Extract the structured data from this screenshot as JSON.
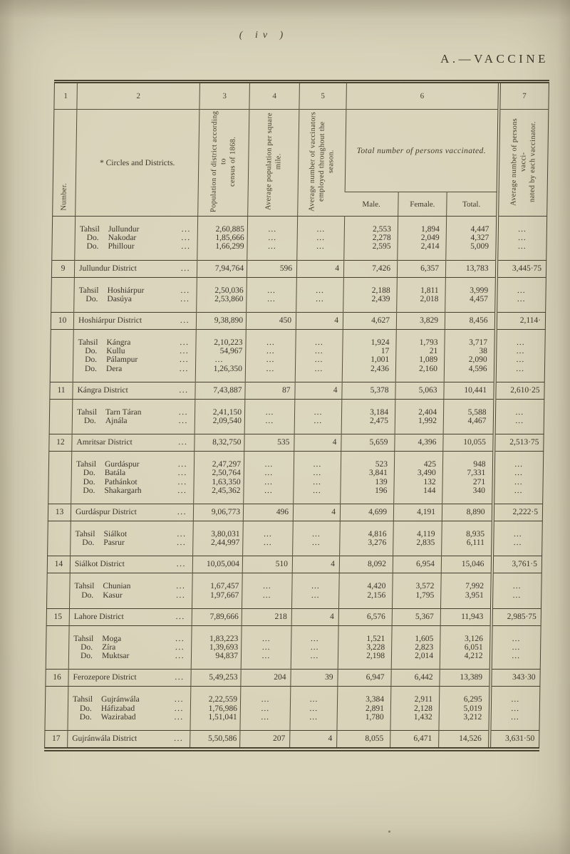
{
  "page": {
    "page_number": "( iv )",
    "section_title": "A.—VACCINE"
  },
  "table": {
    "dots": "...",
    "column_numbers": [
      "1",
      "2",
      "3",
      "4",
      "5",
      "6",
      "7"
    ],
    "headers": {
      "number": "Number.",
      "districts": "* Circles and Districts.",
      "population": "Population of district according to\ncensus of 1868.",
      "density": "Average population per square\nmile.",
      "vaccinators": "Average number of vaccinators\nemployed throughout the season.",
      "vaccinated_caption": "Total number of persons vaccinated.",
      "male": "Male.",
      "female": "Female.",
      "total": "Total.",
      "average": "Average number of persons vacci-\nnated by each vaccinator."
    },
    "groups": [
      {
        "number": "9",
        "tahsils": [
          {
            "prefix": "Tahsil",
            "name": "Jullundur",
            "population": "2,60,885",
            "male": "2,553",
            "female": "1,894",
            "total": "4,447"
          },
          {
            "prefix": "Do.",
            "name": "Nakodar",
            "population": "1,85,666",
            "male": "2,278",
            "female": "2,049",
            "total": "4,327"
          },
          {
            "prefix": "Do.",
            "name": "Phillour",
            "population": "1,66,299",
            "male": "2,595",
            "female": "2,414",
            "total": "5,009"
          }
        ],
        "district": {
          "name": "Jullundur District",
          "population": "7,94,764",
          "density": "596",
          "vaccinators": "4",
          "male": "7,426",
          "female": "6,357",
          "total": "13,783",
          "average": "3,445·75"
        }
      },
      {
        "number": "10",
        "tahsils": [
          {
            "prefix": "Tahsil",
            "name": "Hoshiárpur",
            "population": "2,50,036",
            "male": "2,188",
            "female": "1,811",
            "total": "3,999"
          },
          {
            "prefix": "Do.",
            "name": "Dasúya",
            "population": "2,53,860",
            "male": "2,439",
            "female": "2,018",
            "total": "4,457"
          }
        ],
        "district": {
          "name": "Hoshiárpur District",
          "population": "9,38,890",
          "density": "450",
          "vaccinators": "4",
          "male": "4,627",
          "female": "3,829",
          "total": "8,456",
          "average": "2,114·"
        }
      },
      {
        "number": "11",
        "tahsils": [
          {
            "prefix": "Tahsil",
            "name": "Kángra",
            "population": "2,10,223",
            "male": "1,924",
            "female": "1,793",
            "total": "3,717"
          },
          {
            "prefix": "Do.",
            "name": "Kullu",
            "population": "54,967",
            "male": "17",
            "female": "21",
            "total": "38"
          },
          {
            "prefix": "Do.",
            "name": "Pálampur",
            "population": null,
            "male": "1,001",
            "female": "1,089",
            "total": "2,090"
          },
          {
            "prefix": "Do.",
            "name": "Dera",
            "population": "1,26,350",
            "male": "2,436",
            "female": "2,160",
            "total": "4,596"
          }
        ],
        "district": {
          "name": "Kángra District",
          "population": "7,43,887",
          "density": "87",
          "vaccinators": "4",
          "male": "5,378",
          "female": "5,063",
          "total": "10,441",
          "average": "2,610·25"
        }
      },
      {
        "number": "12",
        "tahsils": [
          {
            "prefix": "Tahsil",
            "name": "Tarn Táran",
            "population": "2,41,150",
            "male": "3,184",
            "female": "2,404",
            "total": "5,588"
          },
          {
            "prefix": "Do.",
            "name": "Ajnála",
            "population": "2,09,540",
            "male": "2,475",
            "female": "1,992",
            "total": "4,467"
          }
        ],
        "district": {
          "name": "Amritsar District",
          "population": "8,32,750",
          "density": "535",
          "vaccinators": "4",
          "male": "5,659",
          "female": "4,396",
          "total": "10,055",
          "average": "2,513·75"
        }
      },
      {
        "number": "13",
        "tahsils": [
          {
            "prefix": "Tahsil",
            "name": "Gurdáspur",
            "population": "2,47,297",
            "male": "523",
            "female": "425",
            "total": "948"
          },
          {
            "prefix": "Do.",
            "name": "Batála",
            "population": "2,50,764",
            "male": "3,841",
            "female": "3,490",
            "total": "7,331"
          },
          {
            "prefix": "Do.",
            "name": "Pathánkot",
            "population": "1,63,350",
            "male": "139",
            "female": "132",
            "total": "271"
          },
          {
            "prefix": "Do.",
            "name": "Shakargarh",
            "population": "2,45,362",
            "male": "196",
            "female": "144",
            "total": "340"
          }
        ],
        "district": {
          "name": "Gurdáspur District",
          "population": "9,06,773",
          "density": "496",
          "vaccinators": "4",
          "male": "4,699",
          "female": "4,191",
          "total": "8,890",
          "average": "2,222·5"
        }
      },
      {
        "number": "14",
        "tahsils": [
          {
            "prefix": "Tahsil",
            "name": "Siálkot",
            "population": "3,80,031",
            "male": "4,816",
            "female": "4,119",
            "total": "8,935"
          },
          {
            "prefix": "Do.",
            "name": "Pasrur",
            "population": "2,44,997",
            "male": "3,276",
            "female": "2,835",
            "total": "6,111"
          }
        ],
        "district": {
          "name": "Siálkot District",
          "population": "10,05,004",
          "density": "510",
          "vaccinators": "4",
          "male": "8,092",
          "female": "6,954",
          "total": "15,046",
          "average": "3,761·5"
        }
      },
      {
        "number": "15",
        "tahsils": [
          {
            "prefix": "Tahsil",
            "name": "Chunian",
            "population": "1,67,457",
            "male": "4,420",
            "female": "3,572",
            "total": "7,992"
          },
          {
            "prefix": "Do.",
            "name": "Kasur",
            "population": "1,97,667",
            "male": "2,156",
            "female": "1,795",
            "total": "3,951"
          }
        ],
        "district": {
          "name": "Lahore District",
          "population": "7,89,666",
          "density": "218",
          "vaccinators": "4",
          "male": "6,576",
          "female": "5,367",
          "total": "11,943",
          "average": "2,985·75"
        }
      },
      {
        "number": "16",
        "tahsils": [
          {
            "prefix": "Tahsil",
            "name": "Moga",
            "population": "1,83,223",
            "male": "1,521",
            "female": "1,605",
            "total": "3,126"
          },
          {
            "prefix": "Do.",
            "name": "Zíra",
            "population": "1,39,693",
            "male": "3,228",
            "female": "2,823",
            "total": "6,051"
          },
          {
            "prefix": "Do.",
            "name": "Muktsar",
            "population": "94,837",
            "male": "2,198",
            "female": "2,014",
            "total": "4,212"
          }
        ],
        "district": {
          "name": "Ferozepore District",
          "population": "5,49,253",
          "density": "204",
          "vaccinators": "39",
          "male": "6,947",
          "female": "6,442",
          "total": "13,389",
          "average": "343·30"
        }
      },
      {
        "number": "17",
        "tahsils": [
          {
            "prefix": "Tahsil",
            "name": "Gujránwála",
            "population": "2,22,559",
            "male": "3,384",
            "female": "2,911",
            "total": "6,295"
          },
          {
            "prefix": "Do.",
            "name": "Háfizabad",
            "population": "1,76,986",
            "male": "2,891",
            "female": "2,128",
            "total": "5,019"
          },
          {
            "prefix": "Do.",
            "name": "Wazirabad",
            "population": "1,51,041",
            "male": "1,780",
            "female": "1,432",
            "total": "3,212"
          }
        ],
        "district": {
          "name": "Gujránwála District",
          "population": "5,50,586",
          "density": "207",
          "vaccinators": "4",
          "male": "8,055",
          "female": "6,471",
          "total": "14,526",
          "average": "3,631·50"
        }
      }
    ]
  }
}
